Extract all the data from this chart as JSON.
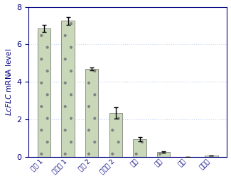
{
  "categories": [
    "幼叶 1",
    "成熟叶 1",
    "幼叶 2",
    "成熟叶 2",
    "叶芽",
    "花芽",
    "花瓣",
    "韧皮部"
  ],
  "values": [
    6.85,
    7.25,
    4.7,
    2.35,
    0.95,
    0.28,
    0.0,
    0.08
  ],
  "errors": [
    0.18,
    0.22,
    0.08,
    0.32,
    0.12,
    0.04,
    0.0,
    0.0
  ],
  "bar_color": "#c8d8b8",
  "bar_edge_color": "#808080",
  "hatch_color": "#d090c0",
  "ylabel_normal": "mRNA level",
  "ylabel_italic": "LcFLC",
  "ylim": [
    0,
    8
  ],
  "yticks": [
    0,
    2,
    4,
    6,
    8
  ],
  "grid_color": "#b8c8f0",
  "grid_alpha": 0.8,
  "bar_width": 0.55,
  "tick_label_color": "#0000cc",
  "axis_color": "#000080",
  "frame_color": "#000080"
}
